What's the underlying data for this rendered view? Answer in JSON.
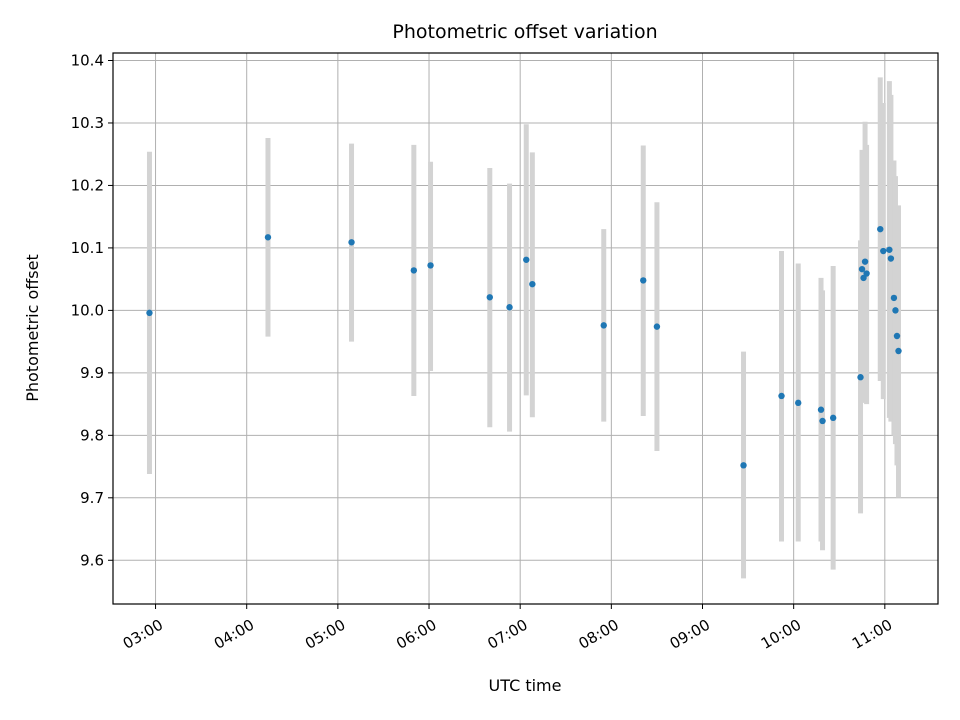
{
  "chart_data": {
    "type": "scatter",
    "title": "Photometric offset variation",
    "xlabel": "UTC time",
    "ylabel": "Photometric offset",
    "x_ticks": [
      "03:00",
      "04:00",
      "05:00",
      "06:00",
      "07:00",
      "08:00",
      "09:00",
      "10:00",
      "11:00"
    ],
    "y_ticks": [
      "9.6",
      "9.7",
      "9.8",
      "9.9",
      "10.0",
      "10.1",
      "10.2",
      "10.3",
      "10.4"
    ],
    "xlim": [
      "02:32",
      "11:35"
    ],
    "ylim": [
      9.53,
      10.412
    ],
    "grid": true,
    "colors": {
      "point": "#1f77b4",
      "errorbar": "#d3d3d3",
      "grid": "#b0b0b0"
    },
    "points": [
      {
        "t": "02:56",
        "y": 9.996,
        "lo": 9.738,
        "hi": 10.254
      },
      {
        "t": "04:14",
        "y": 10.117,
        "lo": 9.958,
        "hi": 10.276
      },
      {
        "t": "05:09",
        "y": 10.109,
        "lo": 9.95,
        "hi": 10.267
      },
      {
        "t": "05:50",
        "y": 10.064,
        "lo": 9.863,
        "hi": 10.265
      },
      {
        "t": "06:01",
        "y": 10.072,
        "lo": 9.903,
        "hi": 10.238
      },
      {
        "t": "06:40",
        "y": 10.021,
        "lo": 9.813,
        "hi": 10.228
      },
      {
        "t": "06:53",
        "y": 10.005,
        "lo": 9.806,
        "hi": 10.203
      },
      {
        "t": "07:04",
        "y": 10.081,
        "lo": 9.864,
        "hi": 10.298
      },
      {
        "t": "07:08",
        "y": 10.042,
        "lo": 9.829,
        "hi": 10.253
      },
      {
        "t": "07:55",
        "y": 9.976,
        "lo": 9.822,
        "hi": 10.13
      },
      {
        "t": "08:21",
        "y": 10.048,
        "lo": 9.831,
        "hi": 10.264
      },
      {
        "t": "08:30",
        "y": 9.974,
        "lo": 9.775,
        "hi": 10.173
      },
      {
        "t": "09:27",
        "y": 9.752,
        "lo": 9.571,
        "hi": 9.934
      },
      {
        "t": "09:52",
        "y": 9.863,
        "lo": 9.63,
        "hi": 10.095
      },
      {
        "t": "10:03",
        "y": 9.852,
        "lo": 9.63,
        "hi": 10.075
      },
      {
        "t": "10:18",
        "y": 9.841,
        "lo": 9.63,
        "hi": 10.052
      },
      {
        "t": "10:19",
        "y": 9.823,
        "lo": 9.616,
        "hi": 10.032
      },
      {
        "t": "10:26",
        "y": 9.828,
        "lo": 9.585,
        "hi": 10.071
      },
      {
        "t": "10:44",
        "y": 9.893,
        "lo": 9.675,
        "hi": 10.112
      },
      {
        "t": "10:45",
        "y": 10.066,
        "lo": 9.87,
        "hi": 10.257
      },
      {
        "t": "10:46",
        "y": 10.052,
        "lo": 9.86,
        "hi": 10.245
      },
      {
        "t": "10:47",
        "y": 10.078,
        "lo": 9.852,
        "hi": 10.302
      },
      {
        "t": "10:48",
        "y": 10.059,
        "lo": 9.85,
        "hi": 10.265
      },
      {
        "t": "10:57",
        "y": 10.13,
        "lo": 9.887,
        "hi": 10.373
      },
      {
        "t": "10:59",
        "y": 10.095,
        "lo": 9.858,
        "hi": 10.332
      },
      {
        "t": "11:03",
        "y": 10.097,
        "lo": 9.828,
        "hi": 10.367
      },
      {
        "t": "11:04",
        "y": 10.083,
        "lo": 9.822,
        "hi": 10.345
      },
      {
        "t": "11:06",
        "y": 10.02,
        "lo": 9.8,
        "hi": 10.24
      },
      {
        "t": "11:07",
        "y": 10.0,
        "lo": 9.786,
        "hi": 10.215
      },
      {
        "t": "11:08",
        "y": 9.959,
        "lo": 9.752,
        "hi": 10.166
      },
      {
        "t": "11:09",
        "y": 9.935,
        "lo": 9.7,
        "hi": 10.168
      }
    ]
  }
}
